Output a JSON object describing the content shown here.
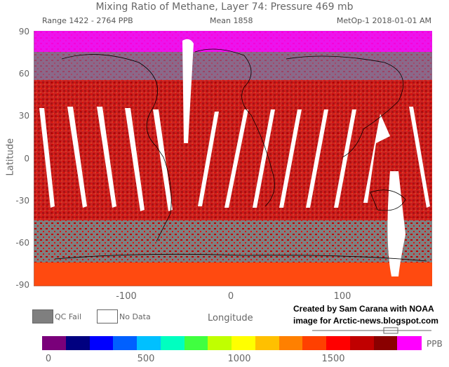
{
  "header": {
    "title": "Mixing Ratio of Methane, Layer 74: Pressure 469 mb",
    "range": "Range 1422 - 2764 PPB",
    "mean": "Mean 1858",
    "satellite": "MetOp-1 2018-01-01 AM"
  },
  "axes": {
    "ylabel": "Latitude",
    "xlabel": "Longitude",
    "yticks": [
      "90",
      "60",
      "30",
      "0",
      "-30",
      "-60",
      "-90"
    ],
    "xticks": [
      "-100",
      "0",
      "100"
    ]
  },
  "legend": {
    "qc_fail": "QC Fail",
    "no_data": "No Data",
    "qc_fail_color": "#7f7f7f",
    "no_data_color": "#ffffff"
  },
  "credit": {
    "line1": "Created by Sam Carana with NOAA",
    "line2": "image for Arctic-news.blogspot.com"
  },
  "colorbar": {
    "unit": "PPB",
    "ticks": [
      "0",
      "500",
      "1000",
      "1500"
    ],
    "colors": [
      "#7a007a",
      "#000080",
      "#0000ff",
      "#0060ff",
      "#00c0ff",
      "#00ffc0",
      "#40ff40",
      "#c0ff00",
      "#ffff00",
      "#ffc000",
      "#ff8000",
      "#ff4000",
      "#ff0000",
      "#c00000",
      "#8a0000",
      "#ff00ff"
    ]
  }
}
